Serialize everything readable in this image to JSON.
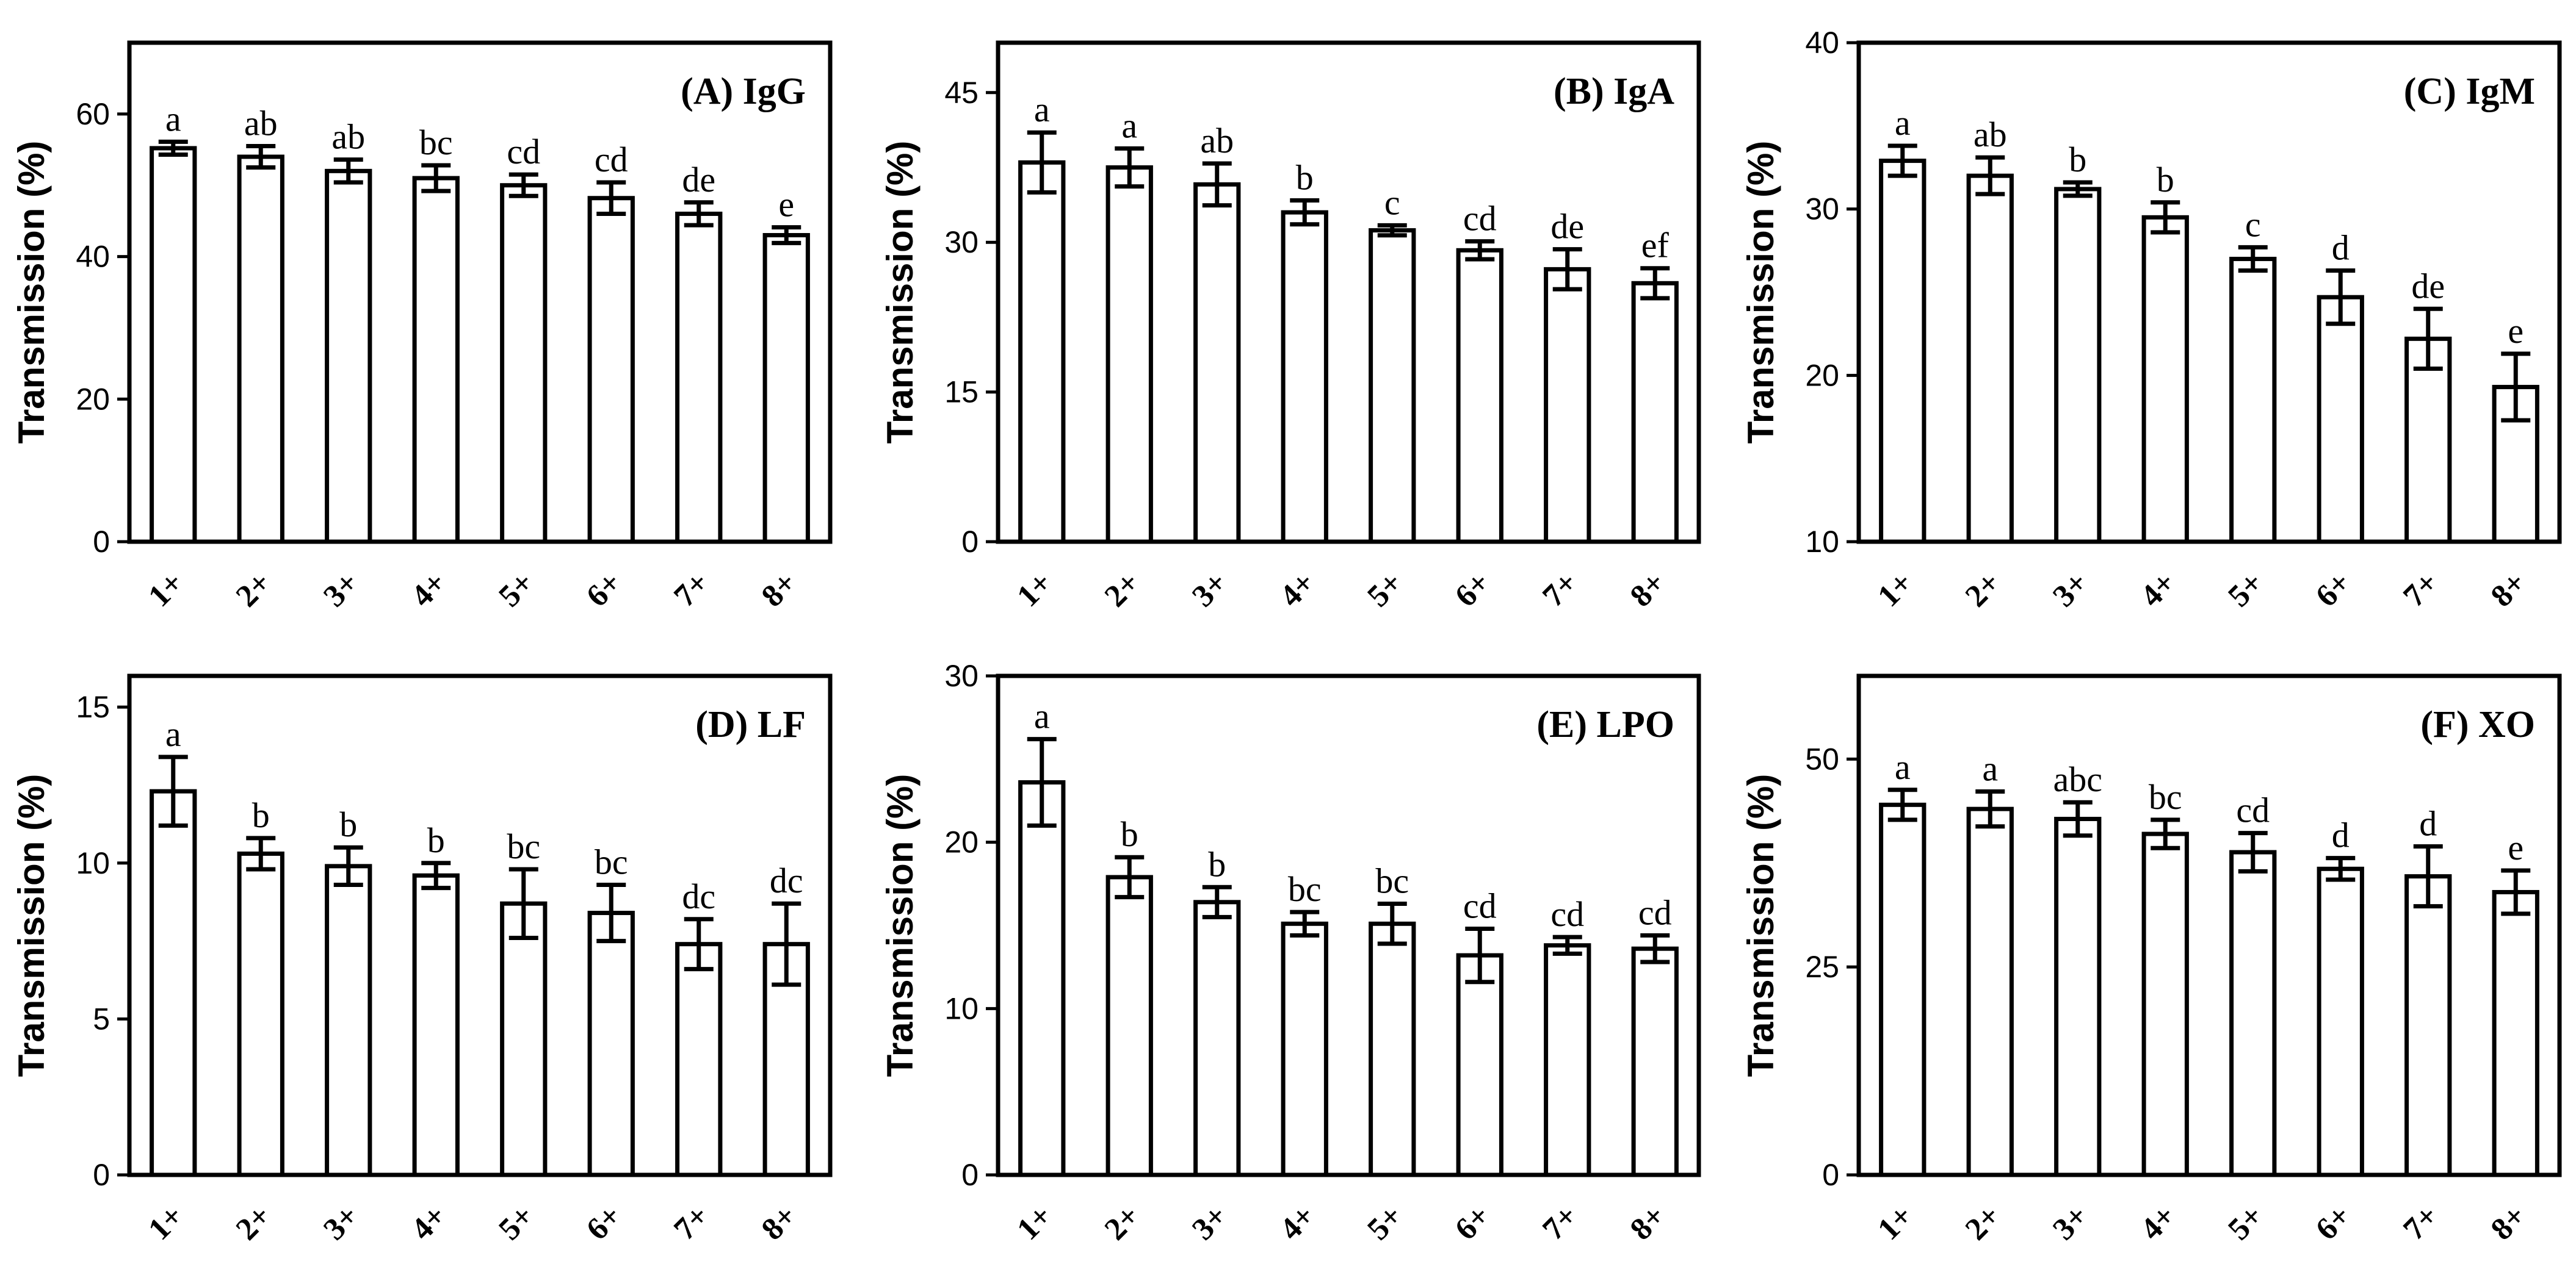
{
  "chart_data": [
    {
      "type": "bar",
      "title": "(A) IgG",
      "ylabel": "Transmission (%)",
      "categories": [
        "1+",
        "2+",
        "3+",
        "4+",
        "5+",
        "6+",
        "7+",
        "8+"
      ],
      "values": [
        55.2,
        54.0,
        52.0,
        51.0,
        50.0,
        48.2,
        46.0,
        43.0
      ],
      "errors": [
        0.9,
        1.5,
        1.6,
        1.8,
        1.5,
        2.2,
        1.6,
        1.1
      ],
      "letters": [
        "a",
        "ab",
        "ab",
        "bc",
        "cd",
        "cd",
        "de",
        "e"
      ],
      "ylim": [
        0,
        70
      ],
      "yticks": [
        0,
        20,
        40,
        60
      ]
    },
    {
      "type": "bar",
      "title": "(B) IgA",
      "ylabel": "Transmission (%)",
      "categories": [
        "1+",
        "2+",
        "3+",
        "4+",
        "5+",
        "6+",
        "7+",
        "8+"
      ],
      "values": [
        38.0,
        37.5,
        35.8,
        33.0,
        31.2,
        29.2,
        27.3,
        25.9
      ],
      "errors": [
        3.0,
        1.9,
        2.1,
        1.2,
        0.5,
        0.9,
        2.0,
        1.5
      ],
      "letters": [
        "a",
        "a",
        "ab",
        "b",
        "c",
        "cd",
        "de",
        "ef"
      ],
      "ylim": [
        0,
        50
      ],
      "yticks": [
        0,
        15,
        30,
        45
      ]
    },
    {
      "type": "bar",
      "title": "(C) IgM",
      "ylabel": "Transmission (%)",
      "categories": [
        "1+",
        "2+",
        "3+",
        "4+",
        "5+",
        "6+",
        "7+",
        "8+"
      ],
      "values": [
        32.9,
        32.0,
        31.2,
        29.5,
        27.0,
        24.7,
        22.2,
        19.3
      ],
      "errors": [
        0.9,
        1.1,
        0.4,
        0.9,
        0.7,
        1.6,
        1.8,
        2.0
      ],
      "letters": [
        "a",
        "ab",
        "b",
        "b",
        "c",
        "d",
        "de",
        "e"
      ],
      "ylim": [
        10,
        40
      ],
      "yticks": [
        10,
        20,
        30,
        40
      ]
    },
    {
      "type": "bar",
      "title": "(D) LF",
      "ylabel": "Transmission (%)",
      "categories": [
        "1+",
        "2+",
        "3+",
        "4+",
        "5+",
        "6+",
        "7+",
        "8+"
      ],
      "values": [
        12.3,
        10.3,
        9.9,
        9.6,
        8.7,
        8.4,
        7.4,
        7.4
      ],
      "errors": [
        1.1,
        0.5,
        0.6,
        0.4,
        1.1,
        0.9,
        0.8,
        1.3
      ],
      "letters": [
        "a",
        "b",
        "b",
        "b",
        "bc",
        "bc",
        "dc",
        "dc"
      ],
      "ylim": [
        0,
        16
      ],
      "yticks": [
        0,
        5,
        10,
        15
      ]
    },
    {
      "type": "bar",
      "title": "(E) LPO",
      "ylabel": "Transmission (%)",
      "categories": [
        "1+",
        "2+",
        "3+",
        "4+",
        "5+",
        "6+",
        "7+",
        "8+"
      ],
      "values": [
        23.6,
        17.9,
        16.4,
        15.1,
        15.1,
        13.2,
        13.8,
        13.6
      ],
      "errors": [
        2.6,
        1.2,
        0.9,
        0.7,
        1.2,
        1.6,
        0.5,
        0.8
      ],
      "letters": [
        "a",
        "b",
        "b",
        "bc",
        "bc",
        "cd",
        "cd",
        "cd"
      ],
      "ylim": [
        0,
        30
      ],
      "yticks": [
        0,
        10,
        20,
        30
      ]
    },
    {
      "type": "bar",
      "title": "(F) XO",
      "ylabel": "Transmission (%)",
      "categories": [
        "1+",
        "2+",
        "3+",
        "4+",
        "5+",
        "6+",
        "7+",
        "8+"
      ],
      "values": [
        44.5,
        44.0,
        42.8,
        41.0,
        38.8,
        36.8,
        35.9,
        34.0
      ],
      "errors": [
        1.8,
        2.1,
        2.0,
        1.7,
        2.3,
        1.3,
        3.6,
        2.6
      ],
      "letters": [
        "a",
        "a",
        "abc",
        "bc",
        "cd",
        "d",
        "d",
        "e"
      ],
      "ylim": [
        0,
        60
      ],
      "yticks": [
        0,
        25,
        50
      ]
    }
  ]
}
